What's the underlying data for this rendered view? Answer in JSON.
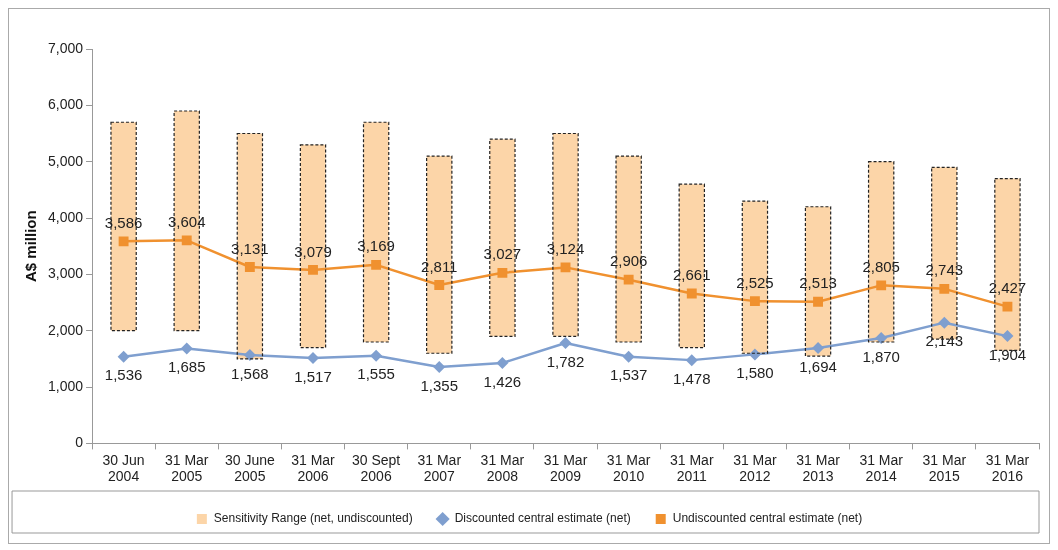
{
  "chart_data": {
    "type": "bar",
    "ylabel": "A$ million",
    "categories": [
      "30 Jun 2004",
      "31 Mar 2005",
      "30 June 2005",
      "31 Mar 2006",
      "30 Sept 2006",
      "31 Mar 2007",
      "31 Mar 2008",
      "31 Mar 2009",
      "31 Mar 2010",
      "31 Mar 2011",
      "31 Mar 2012",
      "31 Mar 2013",
      "31 Mar 2014",
      "31 Mar 2015",
      "31 Mar 2016"
    ],
    "series": [
      {
        "name": "Sensitivity Range (net, undiscounted)",
        "color": "#fcd5a8",
        "base": [
          2000,
          2000,
          1500,
          1700,
          1800,
          1600,
          1900,
          1900,
          1800,
          1700,
          1600,
          1550,
          1800,
          1850,
          1650
        ],
        "values": [
          3700,
          3900,
          4000,
          3600,
          3900,
          3500,
          3500,
          3600,
          3300,
          2900,
          2700,
          2650,
          3200,
          3050,
          3050
        ]
      },
      {
        "name": "Discounted central estimate (net)",
        "type": "line",
        "color": "#7f9fcf",
        "marker": "diamond",
        "values": [
          1536,
          1685,
          1568,
          1517,
          1555,
          1355,
          1426,
          1782,
          1537,
          1478,
          1580,
          1694,
          1870,
          2143,
          1904
        ],
        "value_labels": [
          "1,536",
          "1,685",
          "1,568",
          "1,517",
          "1,555",
          "1,355",
          "1,426",
          "1,782",
          "1,537",
          "1,478",
          "1,580",
          "1,694",
          "1,870",
          "2,143",
          "1,904"
        ]
      },
      {
        "name": "Undiscounted central estimate (net)",
        "type": "line",
        "color": "#f0912f",
        "marker": "square",
        "values": [
          3586,
          3604,
          3131,
          3079,
          3169,
          2811,
          3027,
          3124,
          2906,
          2661,
          2525,
          2513,
          2805,
          2743,
          2427
        ],
        "value_labels": [
          "3,586",
          "3,604",
          "3,131",
          "3,079",
          "3,169",
          "2,811",
          "3,027",
          "3,124",
          "2,906",
          "2,661",
          "2,525",
          "2,513",
          "2,805",
          "2,743",
          "2,427"
        ]
      }
    ],
    "ylim": [
      0,
      7000
    ],
    "yticks": [
      {
        "value": 0,
        "label": "0"
      },
      {
        "value": 1000,
        "label": "1,000"
      },
      {
        "value": 2000,
        "label": "2,000"
      },
      {
        "value": 3000,
        "label": "3,000"
      },
      {
        "value": 4000,
        "label": "4,000"
      },
      {
        "value": 5000,
        "label": "5,000"
      },
      {
        "value": 6000,
        "label": "6,000"
      },
      {
        "value": 7000,
        "label": "7,000"
      }
    ],
    "grid": false,
    "legend": "bottom"
  }
}
